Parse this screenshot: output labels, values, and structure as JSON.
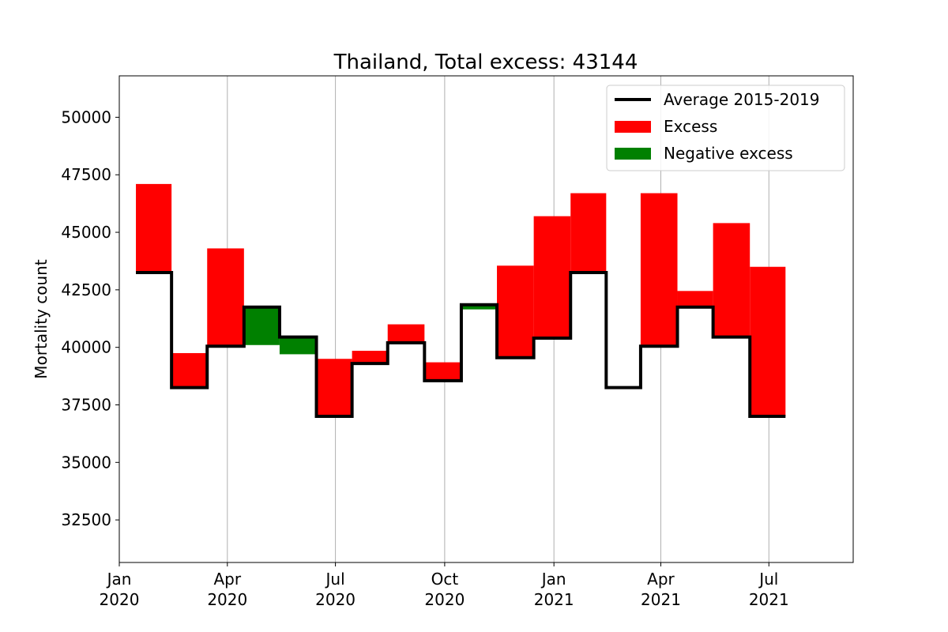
{
  "chart_data": {
    "type": "bar",
    "title": "Thailand, Total excess: 43144",
    "ylabel": "Mortality count",
    "xlabel": "",
    "ylim": [
      30650,
      51800
    ],
    "xlim": [
      "2020-01-01",
      "2021-09-10"
    ],
    "grid": "vertical",
    "legend": {
      "placement": "top-right",
      "entries": [
        {
          "label": "Average 2015-2019",
          "kind": "line",
          "color": "#000000"
        },
        {
          "label": "Excess",
          "kind": "patch",
          "color": "#ff0000"
        },
        {
          "label": "Negative excess",
          "kind": "patch",
          "color": "#008000"
        }
      ]
    },
    "colors": {
      "excess": "#ff0000",
      "negative": "#008000",
      "average": "#000000",
      "grid": "#b0b0b0"
    },
    "y_ticks": [
      32500,
      35000,
      37500,
      40000,
      42500,
      45000,
      47500,
      50000
    ],
    "x_ticks": [
      {
        "date": "2020-01-01",
        "line1": "Jan",
        "line2": "2020"
      },
      {
        "date": "2020-04-01",
        "line1": "Apr",
        "line2": "2020"
      },
      {
        "date": "2020-07-01",
        "line1": "Jul",
        "line2": "2020"
      },
      {
        "date": "2020-10-01",
        "line1": "Oct",
        "line2": "2020"
      },
      {
        "date": "2021-01-01",
        "line1": "Jan",
        "line2": "2021"
      },
      {
        "date": "2021-04-01",
        "line1": "Apr",
        "line2": "2021"
      },
      {
        "date": "2021-07-01",
        "line1": "Jul",
        "line2": "2021"
      }
    ],
    "series": [
      {
        "name": "Average 2015-2019",
        "periods": [
          {
            "start": "2020-01-15",
            "end": "2020-02-14",
            "average": 43250,
            "actual": 47100
          },
          {
            "start": "2020-02-14",
            "end": "2020-03-15",
            "average": 38250,
            "actual": 39750
          },
          {
            "start": "2020-03-15",
            "end": "2020-04-15",
            "average": 40050,
            "actual": 44300
          },
          {
            "start": "2020-04-15",
            "end": "2020-05-15",
            "average": 41750,
            "actual": 40100
          },
          {
            "start": "2020-05-15",
            "end": "2020-06-15",
            "average": 40450,
            "actual": 39700
          },
          {
            "start": "2020-06-15",
            "end": "2020-07-15",
            "average": 37000,
            "actual": 39500
          },
          {
            "start": "2020-07-15",
            "end": "2020-08-14",
            "average": 39300,
            "actual": 39850
          },
          {
            "start": "2020-08-14",
            "end": "2020-09-14",
            "average": 40200,
            "actual": 41000
          },
          {
            "start": "2020-09-14",
            "end": "2020-10-15",
            "average": 38550,
            "actual": 39350
          },
          {
            "start": "2020-10-15",
            "end": "2020-11-14",
            "average": 41850,
            "actual": 41650
          },
          {
            "start": "2020-11-14",
            "end": "2020-12-15",
            "average": 39550,
            "actual": 43550
          },
          {
            "start": "2020-12-15",
            "end": "2021-01-15",
            "average": 40400,
            "actual": 45700
          },
          {
            "start": "2021-01-15",
            "end": "2021-02-14",
            "average": 43250,
            "actual": 46700
          },
          {
            "start": "2021-02-14",
            "end": "2021-03-15",
            "average": 38250,
            "actual": null
          },
          {
            "start": "2021-03-15",
            "end": "2021-04-15",
            "average": 40050,
            "actual": 46700
          },
          {
            "start": "2021-04-15",
            "end": "2021-05-15",
            "average": 41750,
            "actual": 42450
          },
          {
            "start": "2021-05-15",
            "end": "2021-06-15",
            "average": 40450,
            "actual": 45400
          },
          {
            "start": "2021-06-15",
            "end": "2021-07-15",
            "average": 37000,
            "actual": 43500
          }
        ]
      }
    ]
  }
}
